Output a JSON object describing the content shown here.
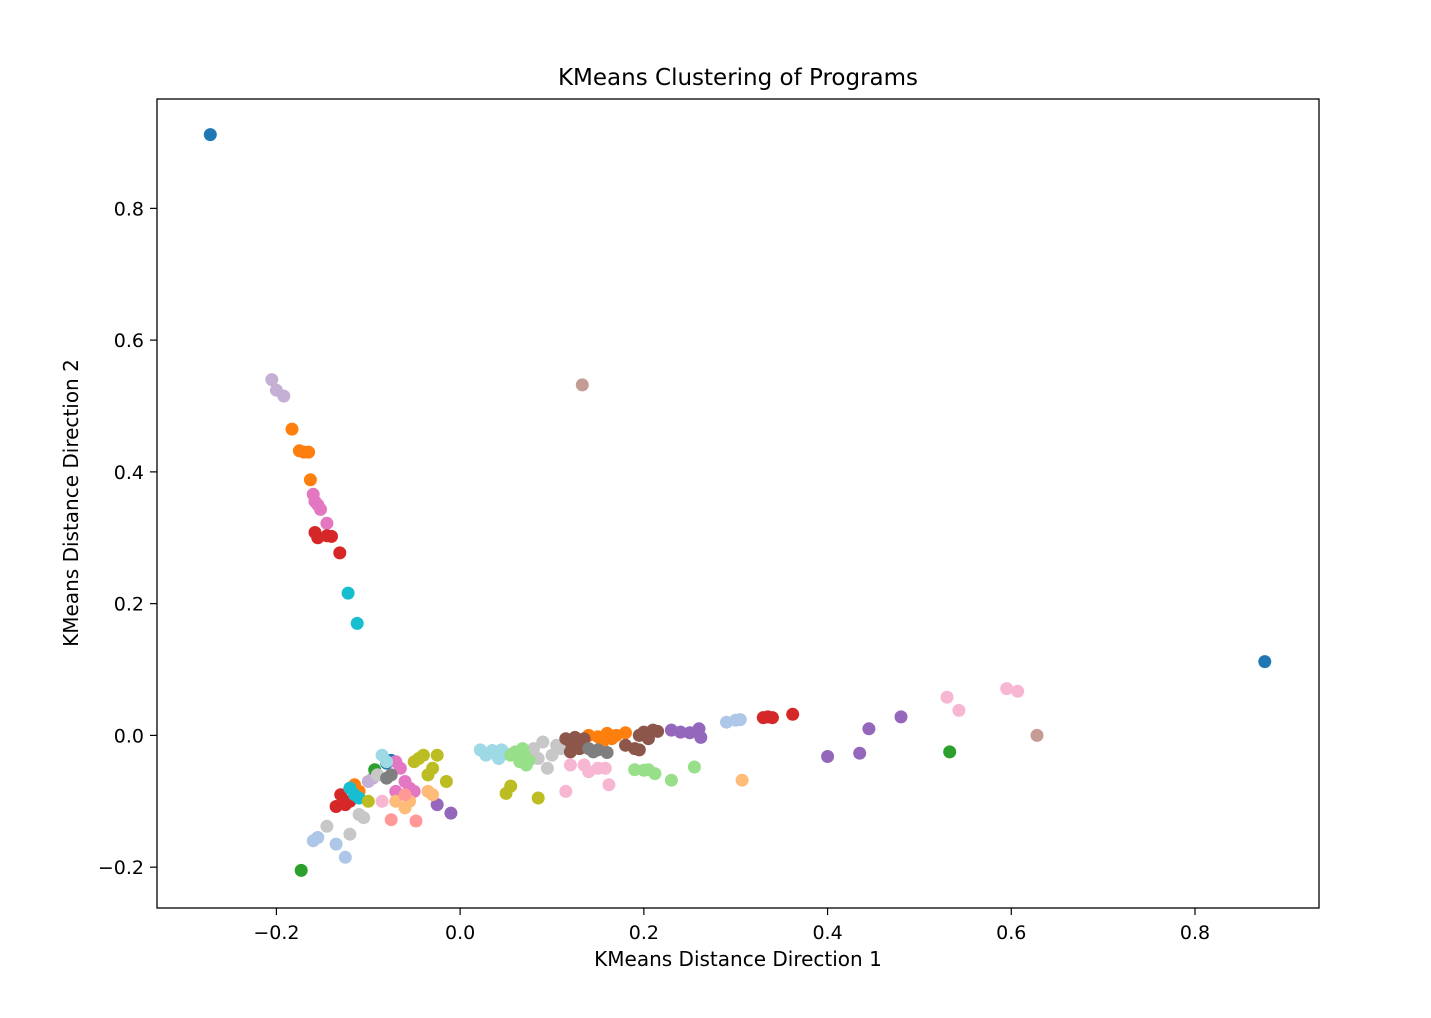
{
  "chart_data": {
    "type": "scatter",
    "title": "KMeans Clustering of Programs",
    "xlabel": "KMeans Distance Direction 1",
    "ylabel": "KMeans Distance Direction 2",
    "xlim": [
      -0.33,
      0.935
    ],
    "ylim": [
      -0.262,
      0.966
    ],
    "xticks": [
      -0.2,
      0.0,
      0.2,
      0.4,
      0.6,
      0.8
    ],
    "yticks": [
      -0.2,
      0.0,
      0.2,
      0.4,
      0.6,
      0.8
    ],
    "xtick_labels": [
      "−0.2",
      "0.0",
      "0.2",
      "0.4",
      "0.6",
      "0.8"
    ],
    "ytick_labels": [
      "−0.2",
      "0.0",
      "0.2",
      "0.4",
      "0.6",
      "0.8"
    ],
    "grid": false,
    "legend": "none",
    "series": [
      {
        "color": "#1f77b4",
        "points": [
          [
            -0.272,
            0.912
          ],
          [
            0.876,
            0.112
          ],
          [
            -0.075,
            -0.038
          ],
          [
            -0.08,
            -0.042
          ]
        ]
      },
      {
        "color": "#c5b0d5",
        "points": [
          [
            -0.205,
            0.54
          ],
          [
            -0.2,
            0.524
          ],
          [
            -0.192,
            0.515
          ],
          [
            -0.1,
            -0.07
          ],
          [
            -0.095,
            -0.065
          ]
        ]
      },
      {
        "color": "#ff7f0e",
        "points": [
          [
            -0.183,
            0.465
          ],
          [
            -0.175,
            0.432
          ],
          [
            -0.17,
            0.43
          ],
          [
            -0.165,
            0.43
          ],
          [
            -0.163,
            0.388
          ],
          [
            -0.115,
            -0.075
          ],
          [
            -0.11,
            -0.085
          ],
          [
            0.14,
            0.0
          ],
          [
            0.15,
            -0.002
          ],
          [
            0.16,
            0.003
          ],
          [
            0.17,
            0.0
          ],
          [
            0.18,
            0.004
          ],
          [
            0.155,
            -0.01
          ],
          [
            0.165,
            -0.005
          ]
        ]
      },
      {
        "color": "#e377c2",
        "points": [
          [
            -0.16,
            0.366
          ],
          [
            -0.158,
            0.355
          ],
          [
            -0.155,
            0.35
          ],
          [
            -0.152,
            0.343
          ],
          [
            -0.145,
            0.322
          ],
          [
            -0.07,
            -0.04
          ],
          [
            -0.065,
            -0.05
          ],
          [
            -0.06,
            -0.07
          ],
          [
            -0.055,
            -0.08
          ],
          [
            -0.05,
            -0.085
          ],
          [
            -0.07,
            -0.085
          ]
        ]
      },
      {
        "color": "#d62728",
        "points": [
          [
            -0.158,
            0.308
          ],
          [
            -0.155,
            0.3
          ],
          [
            -0.145,
            0.303
          ],
          [
            -0.14,
            0.302
          ],
          [
            -0.131,
            0.277
          ],
          [
            -0.135,
            -0.108
          ],
          [
            -0.13,
            -0.09
          ],
          [
            -0.125,
            -0.105
          ],
          [
            -0.12,
            -0.1
          ],
          [
            0.33,
            0.027
          ],
          [
            0.335,
            0.028
          ],
          [
            0.34,
            0.027
          ],
          [
            0.362,
            0.032
          ]
        ]
      },
      {
        "color": "#17becf",
        "points": [
          [
            -0.122,
            0.216
          ],
          [
            -0.112,
            0.17
          ],
          [
            -0.12,
            -0.08
          ],
          [
            -0.115,
            -0.09
          ],
          [
            -0.11,
            -0.095
          ]
        ]
      },
      {
        "color": "#c49c94",
        "points": [
          [
            0.133,
            0.532
          ],
          [
            0.628,
            0.0
          ]
        ]
      },
      {
        "color": "#aec7e8",
        "points": [
          [
            -0.16,
            -0.16
          ],
          [
            -0.155,
            -0.155
          ],
          [
            -0.135,
            -0.165
          ],
          [
            -0.125,
            -0.185
          ],
          [
            0.29,
            0.02
          ],
          [
            0.3,
            0.023
          ],
          [
            0.305,
            0.024
          ]
        ]
      },
      {
        "color": "#2ca02c",
        "points": [
          [
            -0.173,
            -0.205
          ],
          [
            -0.093,
            -0.052
          ],
          [
            0.533,
            -0.025
          ]
        ]
      },
      {
        "color": "#9467bd",
        "points": [
          [
            -0.025,
            -0.105
          ],
          [
            -0.01,
            -0.118
          ],
          [
            0.23,
            0.008
          ],
          [
            0.24,
            0.005
          ],
          [
            0.25,
            0.004
          ],
          [
            0.26,
            0.01
          ],
          [
            0.262,
            -0.003
          ],
          [
            0.4,
            -0.032
          ],
          [
            0.435,
            -0.027
          ],
          [
            0.445,
            0.01
          ],
          [
            0.48,
            0.028
          ]
        ]
      },
      {
        "color": "#f7b6d2",
        "points": [
          [
            0.115,
            -0.085
          ],
          [
            0.12,
            -0.045
          ],
          [
            0.135,
            -0.045
          ],
          [
            0.14,
            -0.055
          ],
          [
            0.15,
            -0.05
          ],
          [
            0.158,
            -0.05
          ],
          [
            0.162,
            -0.075
          ],
          [
            0.53,
            0.058
          ],
          [
            0.543,
            0.038
          ],
          [
            0.595,
            0.071
          ],
          [
            0.607,
            0.067
          ],
          [
            -0.085,
            -0.1
          ],
          [
            -0.09,
            -0.06
          ]
        ]
      },
      {
        "color": "#bcbd22",
        "points": [
          [
            -0.05,
            -0.04
          ],
          [
            -0.045,
            -0.035
          ],
          [
            -0.04,
            -0.03
          ],
          [
            -0.035,
            -0.06
          ],
          [
            -0.03,
            -0.05
          ],
          [
            -0.025,
            -0.03
          ],
          [
            -0.015,
            -0.07
          ],
          [
            0.05,
            -0.088
          ],
          [
            0.055,
            -0.077
          ],
          [
            0.085,
            -0.095
          ],
          [
            -0.1,
            -0.1
          ]
        ]
      },
      {
        "color": "#ffbb78",
        "points": [
          [
            -0.07,
            -0.1
          ],
          [
            -0.06,
            -0.11
          ],
          [
            -0.055,
            -0.1
          ],
          [
            -0.035,
            -0.085
          ],
          [
            -0.03,
            -0.09
          ],
          [
            0.307,
            -0.068
          ]
        ]
      },
      {
        "color": "#ff9896",
        "points": [
          [
            -0.075,
            -0.128
          ],
          [
            -0.048,
            -0.13
          ],
          [
            -0.06,
            -0.09
          ]
        ]
      },
      {
        "color": "#c7c7c7",
        "points": [
          [
            -0.145,
            -0.138
          ],
          [
            -0.12,
            -0.15
          ],
          [
            -0.11,
            -0.12
          ],
          [
            -0.105,
            -0.125
          ],
          [
            0.08,
            -0.02
          ],
          [
            0.09,
            -0.01
          ],
          [
            0.1,
            -0.03
          ],
          [
            0.095,
            -0.05
          ],
          [
            0.105,
            -0.015
          ],
          [
            0.11,
            -0.02
          ],
          [
            0.085,
            -0.035
          ],
          [
            -0.09,
            -0.06
          ]
        ]
      },
      {
        "color": "#9edae5",
        "points": [
          [
            0.022,
            -0.022
          ],
          [
            0.028,
            -0.03
          ],
          [
            0.035,
            -0.023
          ],
          [
            0.04,
            -0.03
          ],
          [
            0.045,
            -0.022
          ],
          [
            0.05,
            -0.028
          ],
          [
            0.042,
            -0.035
          ],
          [
            -0.085,
            -0.03
          ],
          [
            -0.08,
            -0.04
          ]
        ]
      },
      {
        "color": "#98df8a",
        "points": [
          [
            0.055,
            -0.03
          ],
          [
            0.06,
            -0.025
          ],
          [
            0.065,
            -0.04
          ],
          [
            0.07,
            -0.03
          ],
          [
            0.075,
            -0.038
          ],
          [
            0.068,
            -0.02
          ],
          [
            0.072,
            -0.045
          ],
          [
            0.19,
            -0.052
          ],
          [
            0.2,
            -0.053
          ],
          [
            0.205,
            -0.052
          ],
          [
            0.212,
            -0.058
          ],
          [
            0.23,
            -0.068
          ],
          [
            0.255,
            -0.048
          ]
        ]
      },
      {
        "color": "#8c564b",
        "points": [
          [
            0.115,
            -0.005
          ],
          [
            0.12,
            -0.01
          ],
          [
            0.125,
            -0.003
          ],
          [
            0.13,
            -0.02
          ],
          [
            0.135,
            -0.005
          ],
          [
            0.12,
            -0.025
          ],
          [
            0.18,
            -0.015
          ],
          [
            0.19,
            -0.02
          ],
          [
            0.195,
            0.0
          ],
          [
            0.2,
            0.005
          ],
          [
            0.205,
            -0.005
          ],
          [
            0.21,
            0.008
          ],
          [
            0.215,
            0.006
          ],
          [
            0.195,
            -0.022
          ]
        ]
      },
      {
        "color": "#7f7f7f",
        "points": [
          [
            0.14,
            -0.02
          ],
          [
            0.145,
            -0.025
          ],
          [
            0.15,
            -0.022
          ],
          [
            0.16,
            -0.026
          ],
          [
            -0.08,
            -0.065
          ],
          [
            -0.075,
            -0.06
          ]
        ]
      }
    ]
  }
}
